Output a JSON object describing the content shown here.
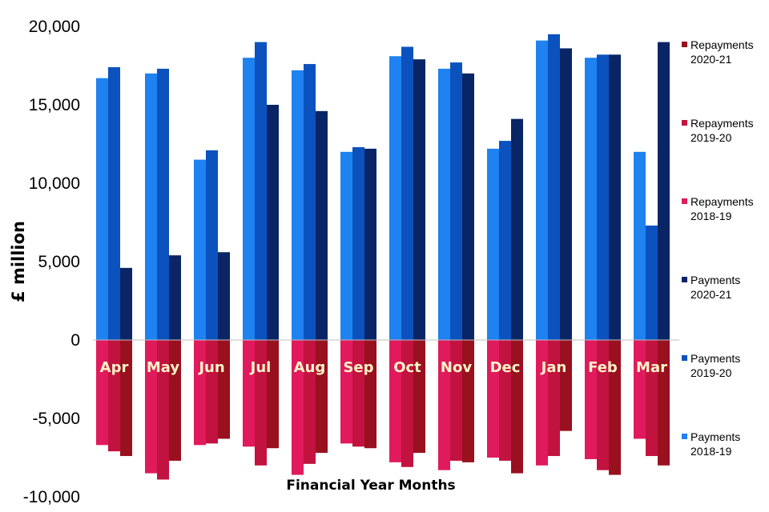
{
  "chart_data": {
    "type": "bar",
    "xlabel": "Financial Year Months",
    "ylabel": "£ million",
    "ylim": [
      -10000,
      20000
    ],
    "y_ticks": [
      20000,
      15000,
      10000,
      5000,
      0,
      -5000,
      -10000
    ],
    "y_tick_labels": [
      "20,000",
      "15,000",
      "10,000",
      "5,000",
      "0",
      "-5,000",
      "-10,000"
    ],
    "grid": false,
    "legend_position": "right",
    "categories": [
      "Apr",
      "May",
      "Jun",
      "Jul",
      "Aug",
      "Sep",
      "Oct",
      "Nov",
      "Dec",
      "Jan",
      "Feb",
      "Mar"
    ],
    "series": [
      {
        "name": "Payments 2018-19",
        "label_lines": [
          "Payments",
          "2018-19"
        ],
        "color": "#1e82f0",
        "group": "payments",
        "values": [
          16700,
          17000,
          11500,
          18000,
          17200,
          12000,
          18100,
          17300,
          12200,
          19100,
          18000,
          12000
        ]
      },
      {
        "name": "Payments 2019-20",
        "label_lines": [
          "Payments",
          "2019-20"
        ],
        "color": "#0b52be",
        "group": "payments",
        "values": [
          17400,
          17300,
          12100,
          19000,
          17600,
          12300,
          18700,
          17700,
          12700,
          19500,
          18200,
          7300
        ]
      },
      {
        "name": "Payments 2020-21",
        "label_lines": [
          "Payments",
          "2020-21"
        ],
        "color": "#0a2565",
        "group": "payments",
        "values": [
          4600,
          5400,
          5600,
          15000,
          14600,
          12200,
          17900,
          17000,
          14100,
          18600,
          18200,
          19000
        ]
      },
      {
        "name": "Repayments 2018-19",
        "label_lines": [
          "Repayments",
          "2018-19"
        ],
        "color": "#e01a5c",
        "group": "repayments",
        "values": [
          -6700,
          -8500,
          -6700,
          -6800,
          -8600,
          -6600,
          -7800,
          -8300,
          -7500,
          -8000,
          -7600,
          -6300
        ]
      },
      {
        "name": "Repayments 2019-20",
        "label_lines": [
          "Repayments",
          "2019-20"
        ],
        "color": "#c2123f",
        "group": "repayments",
        "values": [
          -7100,
          -8900,
          -6600,
          -8000,
          -7900,
          -6800,
          -8100,
          -7700,
          -7700,
          -7400,
          -8300,
          -7400
        ]
      },
      {
        "name": "Repayments 2020-21",
        "label_lines": [
          "Repayments",
          "2020-21"
        ],
        "color": "#99101f",
        "group": "repayments",
        "values": [
          -7400,
          -7700,
          -6300,
          -6900,
          -7200,
          -6900,
          -7200,
          -7800,
          -8500,
          -5800,
          -8600,
          -8000
        ]
      }
    ]
  }
}
